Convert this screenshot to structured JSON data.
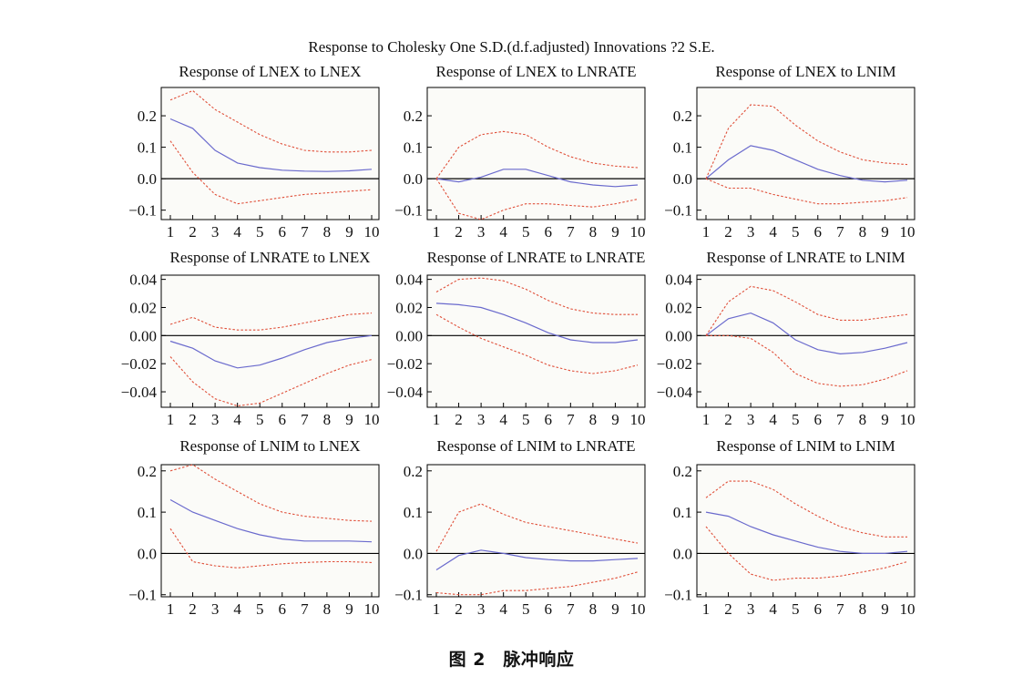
{
  "title": "Response to Cholesky One S.D.(d.f.adjusted) Innovations ?2 S.E.",
  "caption": "图 2　脉冲响应",
  "colors": {
    "response": "#6a6acd",
    "bands": "#e0503a",
    "zero_line": "#000000",
    "plot_bg": "#fbfbf8"
  },
  "chart_data": [
    {
      "type": "line",
      "title": "Response of LNEX to LNEX",
      "x": [
        1,
        2,
        3,
        4,
        5,
        6,
        7,
        8,
        9,
        10
      ],
      "ylim": [
        -0.13,
        0.29
      ],
      "yticks": [
        -0.1,
        0.0,
        0.1,
        0.2
      ],
      "yticklabels": [
        "−0.1",
        "0.0",
        "0.1",
        "0.2"
      ],
      "series": [
        {
          "role": "response",
          "values": [
            0.19,
            0.16,
            0.09,
            0.05,
            0.035,
            0.027,
            0.024,
            0.023,
            0.025,
            0.03
          ]
        },
        {
          "role": "upper",
          "values": [
            0.25,
            0.28,
            0.22,
            0.18,
            0.14,
            0.11,
            0.09,
            0.085,
            0.085,
            0.09
          ]
        },
        {
          "role": "lower",
          "values": [
            0.12,
            0.02,
            -0.05,
            -0.08,
            -0.07,
            -0.06,
            -0.05,
            -0.045,
            -0.04,
            -0.035
          ]
        }
      ]
    },
    {
      "type": "line",
      "title": "Response of LNEX to LNRATE",
      "x": [
        1,
        2,
        3,
        4,
        5,
        6,
        7,
        8,
        9,
        10
      ],
      "ylim": [
        -0.13,
        0.29
      ],
      "yticks": [
        -0.1,
        0.0,
        0.1,
        0.2
      ],
      "yticklabels": [
        "−0.1",
        "0.0",
        "0.1",
        "0.2"
      ],
      "series": [
        {
          "role": "response",
          "values": [
            0.0,
            -0.01,
            0.005,
            0.03,
            0.03,
            0.01,
            -0.01,
            -0.02,
            -0.025,
            -0.02
          ]
        },
        {
          "role": "upper",
          "values": [
            0.0,
            0.1,
            0.14,
            0.15,
            0.14,
            0.1,
            0.07,
            0.05,
            0.04,
            0.035
          ]
        },
        {
          "role": "lower",
          "values": [
            0.0,
            -0.11,
            -0.13,
            -0.1,
            -0.08,
            -0.08,
            -0.085,
            -0.09,
            -0.08,
            -0.065
          ]
        }
      ]
    },
    {
      "type": "line",
      "title": "Response of LNEX to LNIM",
      "x": [
        1,
        2,
        3,
        4,
        5,
        6,
        7,
        8,
        9,
        10
      ],
      "ylim": [
        -0.13,
        0.29
      ],
      "yticks": [
        -0.1,
        0.0,
        0.1,
        0.2
      ],
      "yticklabels": [
        "−0.1",
        "0.0",
        "0.1",
        "0.2"
      ],
      "series": [
        {
          "role": "response",
          "values": [
            0.0,
            0.06,
            0.105,
            0.09,
            0.06,
            0.03,
            0.01,
            -0.005,
            -0.01,
            -0.005
          ]
        },
        {
          "role": "upper",
          "values": [
            0.0,
            0.16,
            0.235,
            0.23,
            0.17,
            0.12,
            0.085,
            0.06,
            0.05,
            0.045
          ]
        },
        {
          "role": "lower",
          "values": [
            0.0,
            -0.03,
            -0.03,
            -0.05,
            -0.065,
            -0.08,
            -0.08,
            -0.075,
            -0.07,
            -0.06
          ]
        }
      ]
    },
    {
      "type": "line",
      "title": "Response of LNRATE to LNEX",
      "x": [
        1,
        2,
        3,
        4,
        5,
        6,
        7,
        8,
        9,
        10
      ],
      "ylim": [
        -0.051,
        0.043
      ],
      "yticks": [
        -0.04,
        -0.02,
        0.0,
        0.02,
        0.04
      ],
      "yticklabels": [
        "−0.04",
        "−0.02",
        "0.00",
        "0.02",
        "0.04"
      ],
      "series": [
        {
          "role": "response",
          "values": [
            -0.004,
            -0.009,
            -0.018,
            -0.023,
            -0.021,
            -0.016,
            -0.01,
            -0.005,
            -0.002,
            0.0
          ]
        },
        {
          "role": "upper",
          "values": [
            0.008,
            0.013,
            0.006,
            0.004,
            0.004,
            0.006,
            0.009,
            0.012,
            0.015,
            0.016
          ]
        },
        {
          "role": "lower",
          "values": [
            -0.015,
            -0.033,
            -0.045,
            -0.05,
            -0.048,
            -0.041,
            -0.034,
            -0.027,
            -0.021,
            -0.017
          ]
        }
      ]
    },
    {
      "type": "line",
      "title": "Response of LNRATE to LNRATE",
      "x": [
        1,
        2,
        3,
        4,
        5,
        6,
        7,
        8,
        9,
        10
      ],
      "ylim": [
        -0.051,
        0.043
      ],
      "yticks": [
        -0.04,
        -0.02,
        0.0,
        0.02,
        0.04
      ],
      "yticklabels": [
        "−0.04",
        "−0.02",
        "0.00",
        "0.02",
        "0.04"
      ],
      "series": [
        {
          "role": "response",
          "values": [
            0.023,
            0.022,
            0.02,
            0.015,
            0.009,
            0.002,
            -0.003,
            -0.005,
            -0.005,
            -0.003
          ]
        },
        {
          "role": "upper",
          "values": [
            0.031,
            0.04,
            0.041,
            0.039,
            0.033,
            0.025,
            0.019,
            0.016,
            0.015,
            0.015
          ]
        },
        {
          "role": "lower",
          "values": [
            0.015,
            0.006,
            -0.002,
            -0.008,
            -0.014,
            -0.021,
            -0.025,
            -0.027,
            -0.025,
            -0.021
          ]
        }
      ]
    },
    {
      "type": "line",
      "title": "Response of LNRATE to LNIM",
      "x": [
        1,
        2,
        3,
        4,
        5,
        6,
        7,
        8,
        9,
        10
      ],
      "ylim": [
        -0.051,
        0.043
      ],
      "yticks": [
        -0.04,
        -0.02,
        0.0,
        0.02,
        0.04
      ],
      "yticklabels": [
        "−0.04",
        "−0.02",
        "0.00",
        "0.02",
        "0.04"
      ],
      "series": [
        {
          "role": "response",
          "values": [
            0.0,
            0.012,
            0.016,
            0.009,
            -0.003,
            -0.01,
            -0.013,
            -0.012,
            -0.009,
            -0.005
          ]
        },
        {
          "role": "upper",
          "values": [
            0.0,
            0.024,
            0.035,
            0.032,
            0.024,
            0.015,
            0.011,
            0.011,
            0.013,
            0.015
          ]
        },
        {
          "role": "lower",
          "values": [
            0.0,
            0.0,
            -0.002,
            -0.012,
            -0.027,
            -0.034,
            -0.036,
            -0.035,
            -0.031,
            -0.025
          ]
        }
      ]
    },
    {
      "type": "line",
      "title": "Response of LNIM to LNEX",
      "x": [
        1,
        2,
        3,
        4,
        5,
        6,
        7,
        8,
        9,
        10
      ],
      "ylim": [
        -0.105,
        0.215
      ],
      "yticks": [
        -0.1,
        0.0,
        0.1,
        0.2
      ],
      "yticklabels": [
        "−0.1",
        "0.0",
        "0.1",
        "0.2"
      ],
      "series": [
        {
          "role": "response",
          "values": [
            0.13,
            0.1,
            0.08,
            0.06,
            0.045,
            0.035,
            0.03,
            0.03,
            0.03,
            0.028
          ]
        },
        {
          "role": "upper",
          "values": [
            0.2,
            0.215,
            0.18,
            0.15,
            0.12,
            0.1,
            0.09,
            0.085,
            0.08,
            0.078
          ]
        },
        {
          "role": "lower",
          "values": [
            0.06,
            -0.02,
            -0.03,
            -0.035,
            -0.03,
            -0.025,
            -0.022,
            -0.02,
            -0.02,
            -0.022
          ]
        }
      ]
    },
    {
      "type": "line",
      "title": "Response of LNIM to LNRATE",
      "x": [
        1,
        2,
        3,
        4,
        5,
        6,
        7,
        8,
        9,
        10
      ],
      "ylim": [
        -0.105,
        0.215
      ],
      "yticks": [
        -0.1,
        0.0,
        0.1,
        0.2
      ],
      "yticklabels": [
        "−0.1",
        "0.0",
        "0.1",
        "0.2"
      ],
      "series": [
        {
          "role": "response",
          "values": [
            -0.04,
            -0.005,
            0.008,
            0.0,
            -0.01,
            -0.015,
            -0.018,
            -0.018,
            -0.015,
            -0.012
          ]
        },
        {
          "role": "upper",
          "values": [
            0.005,
            0.1,
            0.12,
            0.095,
            0.075,
            0.065,
            0.055,
            0.045,
            0.035,
            0.025
          ]
        },
        {
          "role": "lower",
          "values": [
            -0.095,
            -0.1,
            -0.1,
            -0.09,
            -0.09,
            -0.085,
            -0.08,
            -0.07,
            -0.06,
            -0.045
          ]
        }
      ]
    },
    {
      "type": "line",
      "title": "Response of LNIM to LNIM",
      "x": [
        1,
        2,
        3,
        4,
        5,
        6,
        7,
        8,
        9,
        10
      ],
      "ylim": [
        -0.105,
        0.215
      ],
      "yticks": [
        -0.1,
        0.0,
        0.1,
        0.2
      ],
      "yticklabels": [
        "−0.1",
        "0.0",
        "0.1",
        "0.2"
      ],
      "series": [
        {
          "role": "response",
          "values": [
            0.1,
            0.09,
            0.065,
            0.045,
            0.03,
            0.015,
            0.005,
            0.0,
            0.0,
            0.005
          ]
        },
        {
          "role": "upper",
          "values": [
            0.135,
            0.175,
            0.175,
            0.155,
            0.12,
            0.09,
            0.065,
            0.05,
            0.04,
            0.04
          ]
        },
        {
          "role": "lower",
          "values": [
            0.065,
            0.0,
            -0.05,
            -0.065,
            -0.06,
            -0.06,
            -0.055,
            -0.045,
            -0.035,
            -0.02
          ]
        }
      ]
    }
  ]
}
